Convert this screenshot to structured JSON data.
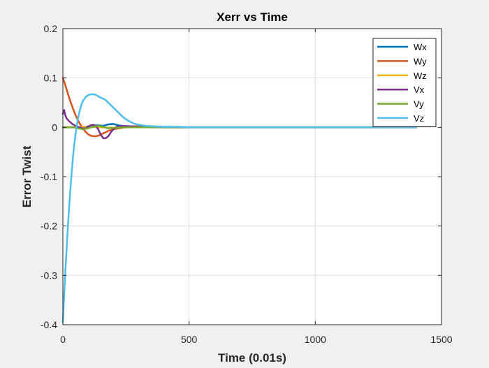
{
  "chart_data": {
    "type": "line",
    "title": "Xerr vs Time",
    "xlabel": "Time (0.01s)",
    "ylabel": "Error Twist",
    "xlim": [
      0,
      1500
    ],
    "ylim": [
      -0.4,
      0.2
    ],
    "xticks": [
      0,
      500,
      1000,
      1500
    ],
    "yticks": [
      -0.4,
      -0.3,
      -0.2,
      -0.1,
      0,
      0.1,
      0.2
    ],
    "xtick_labels": [
      "0",
      "500",
      "1000",
      "1500"
    ],
    "ytick_labels": [
      "-0.4",
      "-0.3",
      "-0.2",
      "-0.1",
      "0",
      "0.1",
      "0.2"
    ],
    "grid": true,
    "legend_position": "top-right",
    "series": [
      {
        "name": "Wx",
        "color": "#0072BD",
        "x": [
          0,
          20,
          40,
          60,
          80,
          100,
          120,
          140,
          160,
          180,
          200,
          220,
          250,
          280,
          320,
          400,
          600,
          1000,
          1400
        ],
        "y": [
          0,
          0,
          0,
          0,
          0,
          0.002,
          0.004,
          0.004,
          0.003,
          0.006,
          0.007,
          0.004,
          0.002,
          0.002,
          0.001,
          0,
          0,
          0,
          0
        ]
      },
      {
        "name": "Wy",
        "color": "#D95319",
        "x": [
          0,
          10,
          20,
          30,
          40,
          50,
          60,
          70,
          80,
          90,
          100,
          110,
          120,
          130,
          140,
          150,
          160,
          170,
          180,
          200,
          220,
          250,
          280,
          320,
          380,
          450,
          600,
          1000,
          1400
        ],
        "y": [
          0.1,
          0.085,
          0.068,
          0.052,
          0.038,
          0.025,
          0.014,
          0.005,
          -0.003,
          -0.009,
          -0.014,
          -0.017,
          -0.018,
          -0.018,
          -0.017,
          -0.015,
          -0.012,
          -0.01,
          -0.007,
          -0.004,
          -0.002,
          0,
          0.002,
          0.002,
          0.001,
          0,
          0,
          0,
          0
        ]
      },
      {
        "name": "Wz",
        "color": "#EDB120",
        "x": [
          0,
          50,
          100,
          150,
          200,
          250,
          300,
          400,
          700,
          1000,
          1400
        ],
        "y": [
          0,
          0,
          0.001,
          0,
          -0.001,
          0,
          0.001,
          0,
          0,
          0,
          0
        ]
      },
      {
        "name": "Vx",
        "color": "#7E2F8E",
        "x": [
          0,
          5,
          10,
          15,
          20,
          30,
          40,
          50,
          60,
          70,
          80,
          90,
          100,
          110,
          120,
          130,
          140,
          150,
          160,
          170,
          180,
          190,
          200,
          210,
          220,
          240,
          270,
          300,
          350,
          400,
          600,
          1000,
          1400
        ],
        "y": [
          0.027,
          0.035,
          0.024,
          0.018,
          0.015,
          0.01,
          0.006,
          0.003,
          0.001,
          -0.001,
          -0.002,
          -0.002,
          0.001,
          0.004,
          0.005,
          0.003,
          -0.004,
          -0.015,
          -0.022,
          -0.022,
          -0.018,
          -0.01,
          -0.004,
          0,
          0.002,
          0.003,
          0.002,
          0.001,
          0,
          0,
          0,
          0,
          0
        ]
      },
      {
        "name": "Vy",
        "color": "#77AC30",
        "x": [
          0,
          40,
          60,
          80,
          100,
          120,
          140,
          160,
          180,
          200,
          250,
          300,
          400,
          700,
          1000,
          1400
        ],
        "y": [
          0,
          0,
          -0.002,
          -0.004,
          -0.002,
          0.001,
          0.003,
          0.001,
          -0.002,
          -0.001,
          0,
          0,
          0,
          0,
          0,
          0
        ]
      },
      {
        "name": "Vz",
        "color": "#4DBEEE",
        "x": [
          0,
          5,
          10,
          15,
          20,
          25,
          30,
          35,
          40,
          45,
          50,
          55,
          60,
          65,
          70,
          75,
          80,
          90,
          100,
          110,
          120,
          130,
          140,
          150,
          160,
          170,
          180,
          200,
          220,
          240,
          260,
          280,
          300,
          330,
          360,
          400,
          450,
          500,
          600,
          1000,
          1400
        ],
        "y": [
          -0.395,
          -0.34,
          -0.29,
          -0.245,
          -0.2,
          -0.16,
          -0.125,
          -0.09,
          -0.06,
          -0.035,
          -0.015,
          0.003,
          0.018,
          0.03,
          0.04,
          0.048,
          0.054,
          0.061,
          0.065,
          0.067,
          0.067,
          0.066,
          0.063,
          0.06,
          0.058,
          0.055,
          0.05,
          0.04,
          0.03,
          0.02,
          0.013,
          0.008,
          0.005,
          0.003,
          0.002,
          0.001,
          0.001,
          0,
          0,
          0,
          0
        ]
      }
    ]
  }
}
